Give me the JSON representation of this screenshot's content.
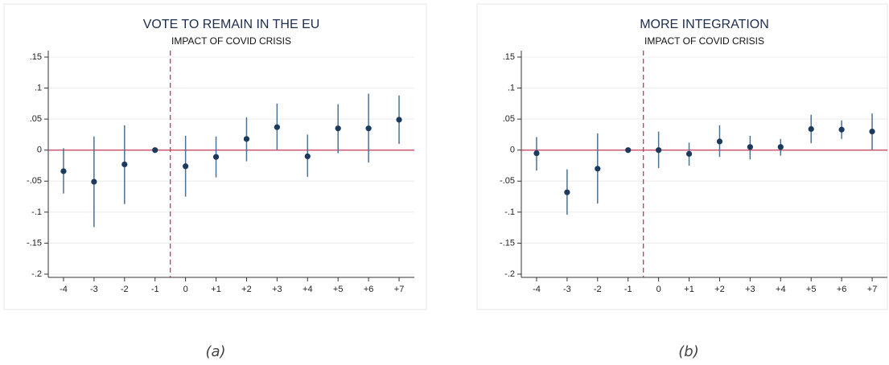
{
  "chart_data": [
    {
      "type": "errorbar",
      "title": "VOTE TO REMAIN IN THE EU",
      "subtitle": "IMPACT OF COVID CRISIS",
      "caption": "(a)",
      "categories": [
        "-4",
        "-3",
        "-2",
        "-1",
        "0",
        "+1",
        "+2",
        "+3",
        "+4",
        "+5",
        "+6",
        "+7"
      ],
      "values": [
        -0.034,
        -0.051,
        -0.023,
        0,
        -0.026,
        -0.011,
        0.018,
        0.037,
        -0.01,
        0.035,
        0.035,
        0.049
      ],
      "lower": [
        -0.07,
        -0.124,
        -0.087,
        0,
        -0.075,
        -0.044,
        -0.018,
        0,
        -0.043,
        -0.005,
        -0.02,
        0.01
      ],
      "upper": [
        0.003,
        0.022,
        0.04,
        0,
        0.023,
        0.022,
        0.053,
        0.075,
        0.025,
        0.074,
        0.091,
        0.088
      ],
      "color": "#1c3a5e",
      "error_color": "#4d7191",
      "hline": 0,
      "hline_color": "#c8385a",
      "ylim": [
        -0.2,
        0.15
      ],
      "yticks": [
        {
          "value": -0.2,
          "label": "-.2"
        },
        {
          "value": -0.15,
          "label": "-.15"
        },
        {
          "value": -0.1,
          "label": "-.1"
        },
        {
          "value": -0.05,
          "label": "-.05"
        },
        0,
        {
          "value": 0.05,
          "label": ".05"
        },
        {
          "value": 0.1,
          "label": ".1"
        },
        {
          "value": 0.15,
          "label": ".15"
        }
      ],
      "grid": true
    },
    {
      "type": "errorbar",
      "title": "MORE INTEGRATION",
      "subtitle": "IMPACT OF COVID CRISIS",
      "caption": "(b)",
      "categories": [
        "-4",
        "-3",
        "-2",
        "-1",
        "0",
        "+1",
        "+2",
        "+3",
        "+4",
        "+5",
        "+6",
        "+7"
      ],
      "values": [
        -0.005,
        -0.068,
        -0.03,
        0,
        0,
        -0.006,
        0.014,
        0.005,
        0.005,
        0.034,
        0.033,
        0.03
      ],
      "lower": [
        -0.033,
        -0.104,
        -0.086,
        0,
        -0.029,
        -0.025,
        -0.011,
        -0.015,
        -0.009,
        0.011,
        0.018,
        0
      ],
      "upper": [
        0.021,
        -0.031,
        0.027,
        0,
        0.03,
        0.012,
        0.04,
        0.023,
        0.018,
        0.057,
        0.048,
        0.059
      ],
      "color": "#1c3a5e",
      "error_color": "#4d7191",
      "hline": 0,
      "hline_color": "#c8385a",
      "ylim": [
        -0.2,
        0.15
      ],
      "yticks": [
        {
          "value": -0.2,
          "label": "-.2"
        },
        {
          "value": -0.15,
          "label": "-.15"
        },
        {
          "value": -0.1,
          "label": "-.1"
        },
        {
          "value": -0.05,
          "label": "-.05"
        },
        0,
        {
          "value": 0.05,
          "label": ".05"
        },
        {
          "value": 0.1,
          "label": ".1"
        },
        {
          "value": 0.15,
          "label": ".15"
        }
      ],
      "grid": true
    }
  ]
}
